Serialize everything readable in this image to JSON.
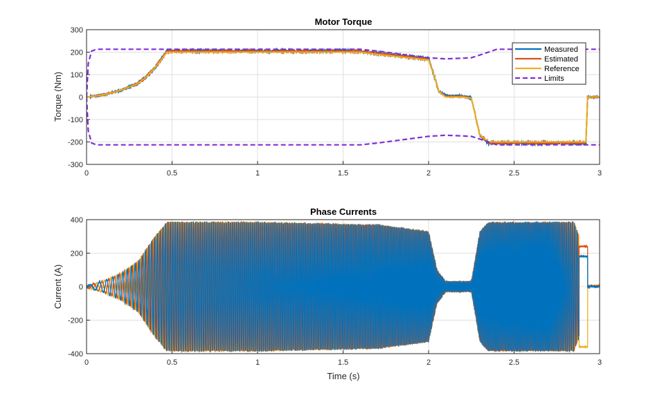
{
  "chart_data": [
    {
      "type": "line",
      "title": "Motor Torque",
      "xlabel": "",
      "ylabel": "Torque (Nm)",
      "xlim": [
        0,
        3
      ],
      "ylim": [
        -300,
        300
      ],
      "xticks": [
        "0",
        "0.5",
        "1",
        "1.5",
        "2",
        "2.5",
        "3"
      ],
      "yticks": [
        "-300",
        "-200",
        "-100",
        "0",
        "100",
        "200",
        "300"
      ],
      "grid": true,
      "legend": "top-right",
      "series": [
        {
          "name": "Measured",
          "color": "#0072BD",
          "style": "solid",
          "x": [
            0,
            0.1,
            0.2,
            0.3,
            0.35,
            0.4,
            0.47,
            1.0,
            1.6,
            1.7,
            2.0,
            2.03,
            2.06,
            2.1,
            2.2,
            2.25,
            2.3,
            2.35,
            2.5,
            2.92,
            2.93,
            3.0
          ],
          "y": [
            0,
            10,
            30,
            60,
            90,
            130,
            205,
            205,
            205,
            195,
            170,
            100,
            25,
            5,
            5,
            -5,
            -170,
            -205,
            -205,
            -205,
            0,
            0
          ]
        },
        {
          "name": "Estimated",
          "color": "#D95319",
          "style": "solid",
          "x": [
            0,
            0.1,
            0.2,
            0.3,
            0.35,
            0.4,
            0.47,
            1.0,
            1.6,
            1.7,
            2.0,
            2.03,
            2.06,
            2.1,
            2.2,
            2.25,
            2.3,
            2.35,
            2.5,
            2.92,
            2.93,
            3.0
          ],
          "y": [
            0,
            10,
            30,
            60,
            90,
            130,
            203,
            203,
            203,
            193,
            168,
            100,
            25,
            3,
            3,
            -5,
            -170,
            -203,
            -203,
            -203,
            0,
            0
          ]
        },
        {
          "name": "Reference",
          "color": "#EDB120",
          "style": "solid",
          "x": [
            0,
            0.1,
            0.2,
            0.3,
            0.35,
            0.4,
            0.47,
            1.0,
            1.6,
            1.7,
            2.0,
            2.03,
            2.06,
            2.1,
            2.2,
            2.25,
            2.3,
            2.35,
            2.5,
            2.92,
            2.93,
            3.0
          ],
          "y": [
            0,
            10,
            30,
            60,
            90,
            130,
            200,
            200,
            200,
            190,
            165,
            100,
            25,
            0,
            0,
            -5,
            -170,
            -200,
            -200,
            -200,
            0,
            0
          ]
        },
        {
          "name": "Limits",
          "color": "#7E2FD6",
          "style": "dashed",
          "x": [
            0,
            0.01,
            0.03,
            0.06,
            1.6,
            1.7,
            2.0,
            2.1,
            2.25,
            2.35,
            2.4,
            3.0
          ],
          "y": [
            0,
            150,
            205,
            213,
            213,
            205,
            175,
            170,
            175,
            200,
            213,
            213
          ],
          "mirror": true
        }
      ]
    },
    {
      "type": "line",
      "title": "Phase Currents",
      "xlabel": "Time (s)",
      "ylabel": "Current (A)",
      "xlim": [
        0,
        3
      ],
      "ylim": [
        -400,
        400
      ],
      "xticks": [
        "0",
        "0.5",
        "1",
        "1.5",
        "2",
        "2.5",
        "3"
      ],
      "yticks": [
        "-400",
        "-200",
        "0",
        "200",
        "400"
      ],
      "grid": true,
      "phases": [
        {
          "color": "#0072BD"
        },
        {
          "color": "#D95319"
        },
        {
          "color": "#EDB120"
        }
      ],
      "envelope": {
        "x": [
          0,
          0.1,
          0.2,
          0.3,
          0.4,
          0.47,
          1.0,
          1.7,
          2.0,
          2.05,
          2.1,
          2.25,
          2.3,
          2.35,
          2.85,
          2.9,
          2.93,
          3.0
        ],
        "amplitude": [
          5,
          35,
          80,
          150,
          300,
          385,
          385,
          370,
          330,
          100,
          30,
          30,
          330,
          385,
          385,
          250,
          10,
          10
        ]
      }
    }
  ]
}
